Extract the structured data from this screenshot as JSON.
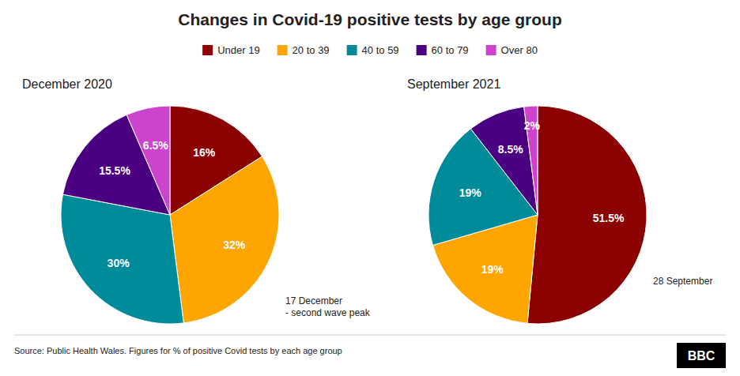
{
  "chart_data": {
    "type": "pie",
    "title": "Changes in Covid-19 positive tests by age group",
    "categories": [
      "Under 19",
      "20 to 39",
      "40 to 59",
      "60 to 79",
      "Over 80"
    ],
    "colors": [
      "#8B0000",
      "#FFA500",
      "#008B9A",
      "#4B0082",
      "#CC44CC"
    ],
    "series": [
      {
        "name": "December 2020",
        "values": [
          16,
          32,
          30,
          15.5,
          6.5
        ],
        "value_labels": [
          "16%",
          "32%",
          "30%",
          "15.5%",
          "6.5%"
        ]
      },
      {
        "name": "September 2021",
        "values": [
          51.5,
          19,
          19,
          8.5,
          2
        ],
        "value_labels": [
          "51.5%",
          "19%",
          "19%",
          "8.5%",
          "2%"
        ]
      }
    ],
    "data_labels": true,
    "legend": "top",
    "annotations": [
      "17 December\n- second wave peak",
      "28 September",
      "BBC"
    ],
    "source": "Source: Public Health Wales. Figures for % of positive Covid tests by each age group"
  }
}
